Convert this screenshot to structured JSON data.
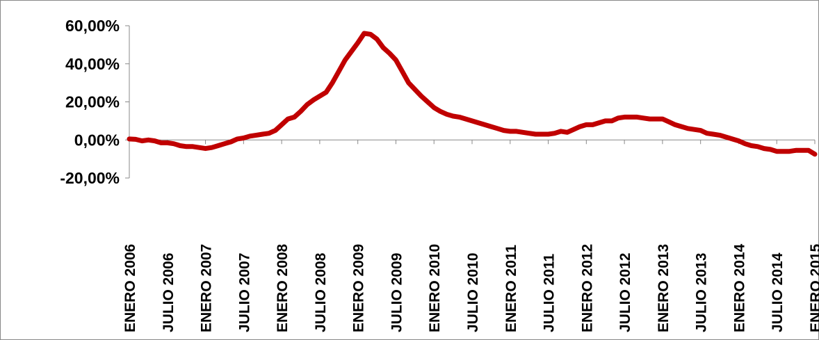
{
  "chart_data": {
    "type": "line",
    "color": "#c00000",
    "categories": [
      "ENERO 2006",
      null,
      null,
      null,
      null,
      null,
      "JULIO 2006",
      null,
      null,
      null,
      null,
      null,
      "ENERO 2007",
      null,
      null,
      null,
      null,
      null,
      "JULIO 2007",
      null,
      null,
      null,
      null,
      null,
      "ENERO 2008",
      null,
      null,
      null,
      null,
      null,
      "JULIO 2008",
      null,
      null,
      null,
      null,
      null,
      "ENERO 2009",
      null,
      null,
      null,
      null,
      null,
      "JULIO 2009",
      null,
      null,
      null,
      null,
      null,
      "ENERO 2010",
      null,
      null,
      null,
      null,
      null,
      "JULIO 2010",
      null,
      null,
      null,
      null,
      null,
      "ENERO 2011",
      null,
      null,
      null,
      null,
      null,
      "JULIO 2011",
      null,
      null,
      null,
      null,
      null,
      "ENERO 2012",
      null,
      null,
      null,
      null,
      null,
      "JULIO 2012",
      null,
      null,
      null,
      null,
      null,
      "ENERO 2013",
      null,
      null,
      null,
      null,
      null,
      "JULIO 2013",
      null,
      null,
      null,
      null,
      null,
      "ENERO 2014",
      null,
      null,
      null,
      null,
      null,
      "JULIO 2014",
      null,
      null,
      null,
      null,
      null,
      "ENERO 2015"
    ],
    "values": [
      0.5,
      0.3,
      -0.5,
      0,
      -0.5,
      -1.5,
      -1.5,
      -2,
      -3,
      -3.5,
      -3.5,
      -4,
      -4.5,
      -4,
      -3,
      -2,
      -1,
      0.5,
      1,
      2,
      2.5,
      3,
      3.5,
      5,
      8,
      11,
      12,
      15,
      18.5,
      21,
      23,
      25,
      30,
      36,
      42,
      46.5,
      51,
      56,
      55.5,
      53,
      48.5,
      45.5,
      42,
      36,
      30,
      26.5,
      23,
      20,
      17,
      15,
      13.5,
      12.5,
      12,
      11,
      10,
      9,
      8,
      7,
      6,
      5,
      4.5,
      4.5,
      4,
      3.5,
      3,
      3,
      3,
      3.5,
      4.5,
      4,
      5.5,
      7,
      8,
      8,
      9,
      10,
      10,
      11.5,
      12,
      12,
      12,
      11.5,
      11,
      11,
      11,
      9.5,
      8,
      7,
      6,
      5.5,
      5,
      3.5,
      3,
      2.5,
      1.5,
      0.5,
      -0.5,
      -2,
      -3,
      -3.5,
      -4.5,
      -5,
      -6,
      -6,
      -6,
      -5.5,
      -5.5,
      -5.5,
      -7.5
    ],
    "ylim": [
      -20,
      60
    ],
    "yticks": [
      {
        "value": -20,
        "label": "-20,00%"
      },
      {
        "value": 0,
        "label": "0,00%"
      },
      {
        "value": 20,
        "label": "20,00%"
      },
      {
        "value": 40,
        "label": "40,00%"
      },
      {
        "value": 60,
        "label": "60,00%"
      }
    ]
  }
}
